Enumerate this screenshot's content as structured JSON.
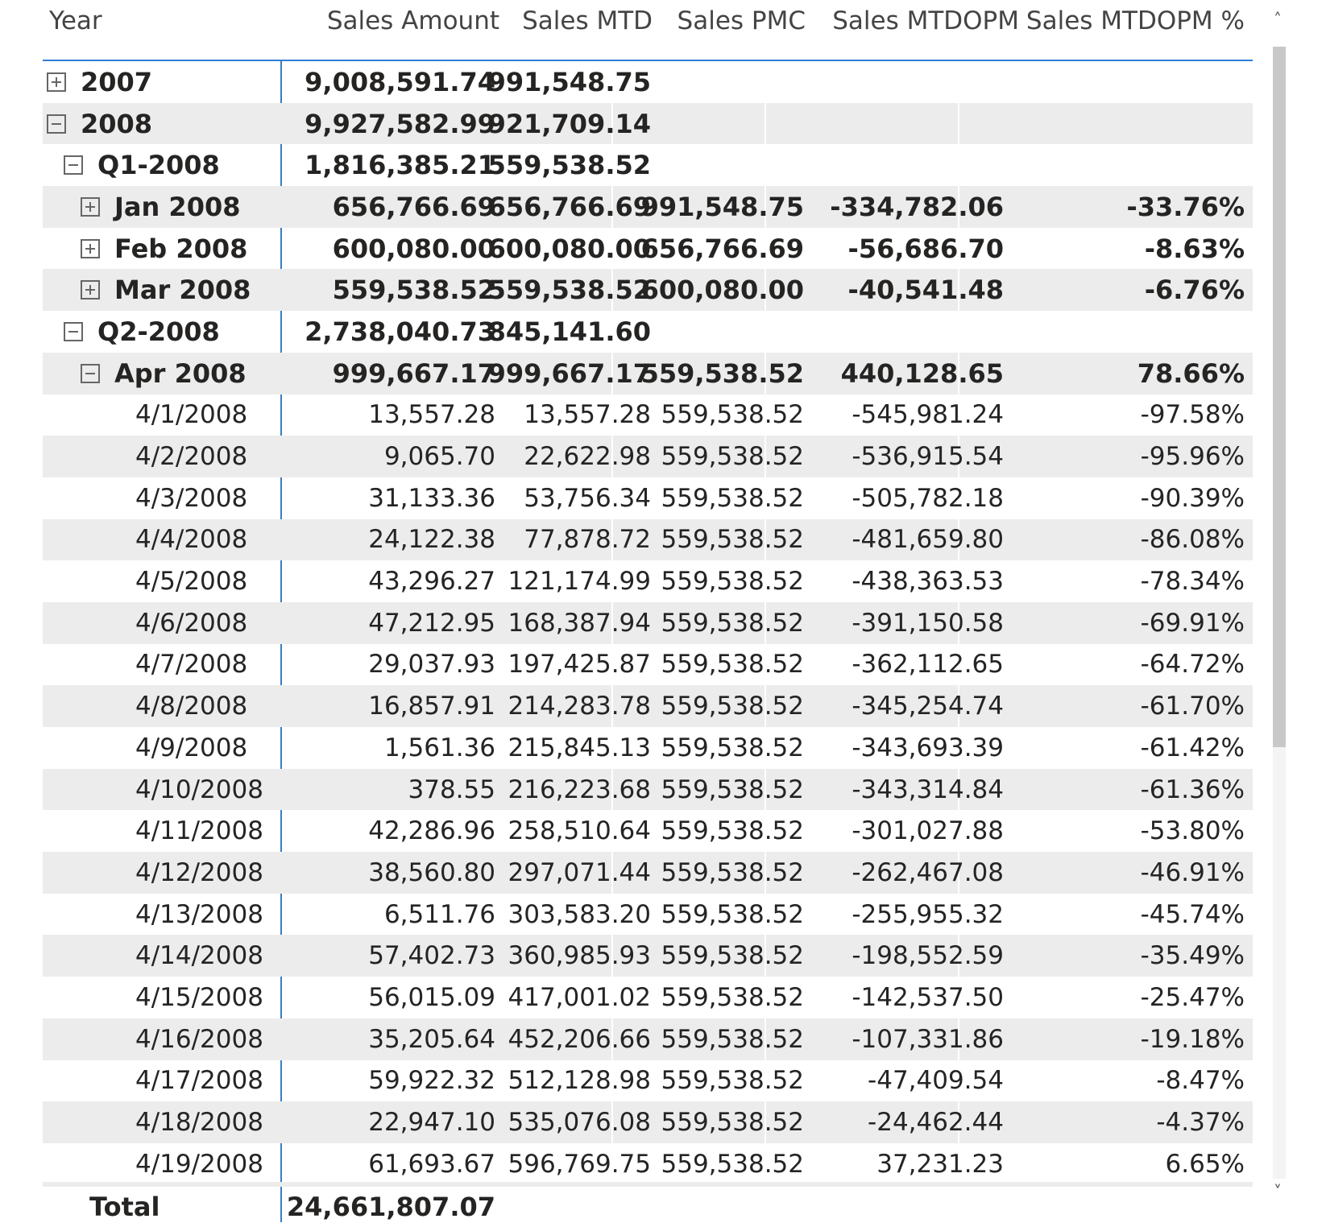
{
  "headers": [
    "Year",
    "Sales Amount",
    "Sales MTD",
    "Sales PMC",
    "Sales MTDOPM",
    "Sales MTDOPM %"
  ],
  "rows": [
    {
      "label": "2007",
      "level": 0,
      "toggle": "expand",
      "bold": true,
      "values": [
        "9,008,591.74",
        "991,548.75",
        "",
        "",
        ""
      ]
    },
    {
      "label": "2008",
      "level": 0,
      "toggle": "collapse",
      "bold": true,
      "values": [
        "9,927,582.99",
        "921,709.14",
        "",
        "",
        ""
      ]
    },
    {
      "label": "Q1-2008",
      "level": 1,
      "toggle": "collapse",
      "bold": true,
      "values": [
        "1,816,385.21",
        "559,538.52",
        "",
        "",
        ""
      ]
    },
    {
      "label": "Jan 2008",
      "level": 2,
      "toggle": "expand",
      "bold": true,
      "values": [
        "656,766.69",
        "656,766.69",
        "991,548.75",
        "-334,782.06",
        "-33.76%"
      ]
    },
    {
      "label": "Feb 2008",
      "level": 2,
      "toggle": "expand",
      "bold": true,
      "values": [
        "600,080.00",
        "600,080.00",
        "656,766.69",
        "-56,686.70",
        "-8.63%"
      ]
    },
    {
      "label": "Mar 2008",
      "level": 2,
      "toggle": "expand",
      "bold": true,
      "values": [
        "559,538.52",
        "559,538.52",
        "600,080.00",
        "-40,541.48",
        "-6.76%"
      ]
    },
    {
      "label": "Q2-2008",
      "level": 1,
      "toggle": "collapse",
      "bold": true,
      "values": [
        "2,738,040.73",
        "845,141.60",
        "",
        "",
        ""
      ]
    },
    {
      "label": "Apr 2008",
      "level": 2,
      "toggle": "collapse",
      "bold": true,
      "values": [
        "999,667.17",
        "999,667.17",
        "559,538.52",
        "440,128.65",
        "78.66%"
      ]
    },
    {
      "label": "4/1/2008",
      "level": 3,
      "toggle": "",
      "bold": false,
      "values": [
        "13,557.28",
        "13,557.28",
        "559,538.52",
        "-545,981.24",
        "-97.58%"
      ]
    },
    {
      "label": "4/2/2008",
      "level": 3,
      "toggle": "",
      "bold": false,
      "values": [
        "9,065.70",
        "22,622.98",
        "559,538.52",
        "-536,915.54",
        "-95.96%"
      ]
    },
    {
      "label": "4/3/2008",
      "level": 3,
      "toggle": "",
      "bold": false,
      "values": [
        "31,133.36",
        "53,756.34",
        "559,538.52",
        "-505,782.18",
        "-90.39%"
      ]
    },
    {
      "label": "4/4/2008",
      "level": 3,
      "toggle": "",
      "bold": false,
      "values": [
        "24,122.38",
        "77,878.72",
        "559,538.52",
        "-481,659.80",
        "-86.08%"
      ]
    },
    {
      "label": "4/5/2008",
      "level": 3,
      "toggle": "",
      "bold": false,
      "values": [
        "43,296.27",
        "121,174.99",
        "559,538.52",
        "-438,363.53",
        "-78.34%"
      ]
    },
    {
      "label": "4/6/2008",
      "level": 3,
      "toggle": "",
      "bold": false,
      "values": [
        "47,212.95",
        "168,387.94",
        "559,538.52",
        "-391,150.58",
        "-69.91%"
      ]
    },
    {
      "label": "4/7/2008",
      "level": 3,
      "toggle": "",
      "bold": false,
      "values": [
        "29,037.93",
        "197,425.87",
        "559,538.52",
        "-362,112.65",
        "-64.72%"
      ]
    },
    {
      "label": "4/8/2008",
      "level": 3,
      "toggle": "",
      "bold": false,
      "values": [
        "16,857.91",
        "214,283.78",
        "559,538.52",
        "-345,254.74",
        "-61.70%"
      ]
    },
    {
      "label": "4/9/2008",
      "level": 3,
      "toggle": "",
      "bold": false,
      "values": [
        "1,561.36",
        "215,845.13",
        "559,538.52",
        "-343,693.39",
        "-61.42%"
      ]
    },
    {
      "label": "4/10/2008",
      "level": 3,
      "toggle": "",
      "bold": false,
      "values": [
        "378.55",
        "216,223.68",
        "559,538.52",
        "-343,314.84",
        "-61.36%"
      ]
    },
    {
      "label": "4/11/2008",
      "level": 3,
      "toggle": "",
      "bold": false,
      "values": [
        "42,286.96",
        "258,510.64",
        "559,538.52",
        "-301,027.88",
        "-53.80%"
      ]
    },
    {
      "label": "4/12/2008",
      "level": 3,
      "toggle": "",
      "bold": false,
      "values": [
        "38,560.80",
        "297,071.44",
        "559,538.52",
        "-262,467.08",
        "-46.91%"
      ]
    },
    {
      "label": "4/13/2008",
      "level": 3,
      "toggle": "",
      "bold": false,
      "values": [
        "6,511.76",
        "303,583.20",
        "559,538.52",
        "-255,955.32",
        "-45.74%"
      ]
    },
    {
      "label": "4/14/2008",
      "level": 3,
      "toggle": "",
      "bold": false,
      "values": [
        "57,402.73",
        "360,985.93",
        "559,538.52",
        "-198,552.59",
        "-35.49%"
      ]
    },
    {
      "label": "4/15/2008",
      "level": 3,
      "toggle": "",
      "bold": false,
      "values": [
        "56,015.09",
        "417,001.02",
        "559,538.52",
        "-142,537.50",
        "-25.47%"
      ]
    },
    {
      "label": "4/16/2008",
      "level": 3,
      "toggle": "",
      "bold": false,
      "values": [
        "35,205.64",
        "452,206.66",
        "559,538.52",
        "-107,331.86",
        "-19.18%"
      ]
    },
    {
      "label": "4/17/2008",
      "level": 3,
      "toggle": "",
      "bold": false,
      "values": [
        "59,922.32",
        "512,128.98",
        "559,538.52",
        "-47,409.54",
        "-8.47%"
      ]
    },
    {
      "label": "4/18/2008",
      "level": 3,
      "toggle": "",
      "bold": false,
      "values": [
        "22,947.10",
        "535,076.08",
        "559,538.52",
        "-24,462.44",
        "-4.37%"
      ]
    },
    {
      "label": "4/19/2008",
      "level": 3,
      "toggle": "",
      "bold": false,
      "values": [
        "61,693.67",
        "596,769.75",
        "559,538.52",
        "37,231.23",
        "6.65%"
      ]
    }
  ],
  "total": {
    "label": "Total",
    "values": [
      "24,661,807.07",
      "",
      "",
      "",
      ""
    ]
  },
  "scrollbar": {
    "up_arrow": "˄",
    "down_arrow": "˅"
  },
  "colors": {
    "accent": "#2f7fd6",
    "row_shade": "#ececec"
  }
}
